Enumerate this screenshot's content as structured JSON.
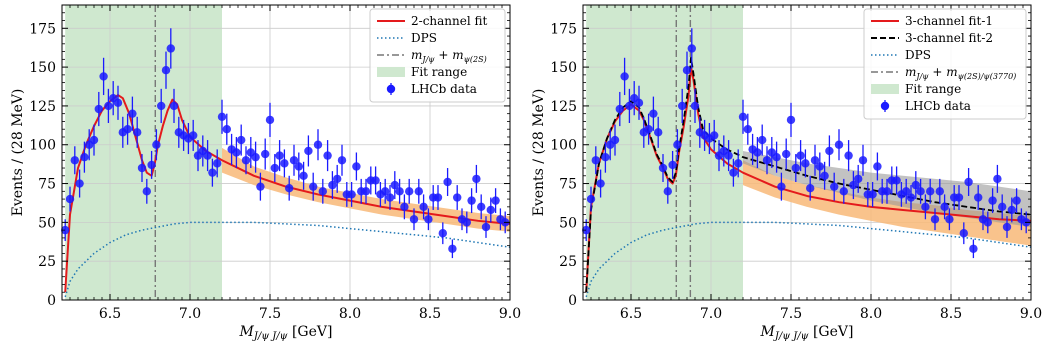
{
  "chart_data": [
    {
      "type": "scatter",
      "title": "",
      "xlabel_main": "M",
      "xlabel_sub": "J/ψ J/ψ",
      "xlabel_unit": " [GeV]",
      "ylabel": "Events / (28 MeV)",
      "xlim": [
        6.2,
        9.0
      ],
      "ylim": [
        0,
        190
      ],
      "xticks": [
        "6.5",
        "7.0",
        "7.5",
        "8.0",
        "8.5",
        "9.0"
      ],
      "xtick_values": [
        6.5,
        7.0,
        7.5,
        8.0,
        8.5,
        9.0
      ],
      "yticks": [
        "0",
        "25",
        "50",
        "75",
        "100",
        "125",
        "150",
        "175"
      ],
      "ytick_values": [
        0,
        25,
        50,
        75,
        100,
        125,
        150,
        175
      ],
      "grid": true,
      "legend_position": "top-right",
      "fit_range": [
        6.22,
        7.2
      ],
      "threshold_lines": [
        6.783
      ],
      "colors": {
        "fit_range": "#cfe8cf",
        "fit": "#e41a1c",
        "band": "#f8b878",
        "dps": "#1f77b4",
        "data": "#1a1aff",
        "threshold": "#777777"
      },
      "legend": [
        {
          "label": "2-channel fit",
          "style": "fit"
        },
        {
          "label": "DPS",
          "style": "dps"
        },
        {
          "label": "m_{J/ψ} + m_{ψ(2S)}",
          "style": "threshold",
          "math_main": "m",
          "math_sub": "J/ψ",
          "math_plus": " + m",
          "math_sub2": "ψ(2S)"
        },
        {
          "label": "Fit range",
          "style": "fit_range"
        },
        {
          "label": "LHCb data",
          "style": "data"
        }
      ],
      "data": {
        "x": [
          6.22,
          6.25,
          6.28,
          6.31,
          6.34,
          6.37,
          6.4,
          6.43,
          6.46,
          6.49,
          6.52,
          6.55,
          6.58,
          6.61,
          6.64,
          6.67,
          6.7,
          6.73,
          6.76,
          6.79,
          6.82,
          6.85,
          6.88,
          6.9,
          6.93,
          6.96,
          6.99,
          7.02,
          7.05,
          7.08,
          7.11,
          7.14,
          7.17,
          7.2,
          7.23,
          7.26,
          7.29,
          7.32,
          7.35,
          7.38,
          7.41,
          7.44,
          7.47,
          7.5,
          7.53,
          7.56,
          7.59,
          7.62,
          7.65,
          7.68,
          7.71,
          7.74,
          7.77,
          7.8,
          7.83,
          7.86,
          7.89,
          7.92,
          7.95,
          7.98,
          8.01,
          8.04,
          8.07,
          8.1,
          8.13,
          8.16,
          8.19,
          8.22,
          8.25,
          8.28,
          8.31,
          8.34,
          8.37,
          8.4,
          8.43,
          8.46,
          8.49,
          8.52,
          8.55,
          8.58,
          8.61,
          8.64,
          8.67,
          8.7,
          8.73,
          8.76,
          8.79,
          8.82,
          8.85,
          8.88,
          8.91,
          8.94,
          8.97
        ],
        "y": [
          45,
          65,
          90,
          75,
          92,
          100,
          103,
          123,
          144,
          125,
          130,
          127,
          108,
          110,
          120,
          108,
          85,
          70,
          87,
          100,
          125,
          148,
          162,
          125,
          108,
          106,
          104,
          106,
          93,
          96,
          93,
          82,
          88,
          118,
          110,
          97,
          95,
          103,
          90,
          95,
          92,
          73,
          94,
          116,
          85,
          93,
          88,
          72,
          90,
          86,
          80,
          96,
          73,
          100,
          70,
          93,
          74,
          78,
          90,
          68,
          68,
          86,
          70,
          70,
          77,
          77,
          68,
          70,
          66,
          74,
          70,
          60,
          70,
          52,
          70,
          60,
          52,
          66,
          66,
          43,
          76,
          33,
          66,
          52,
          50,
          64,
          78,
          60,
          47,
          58,
          64,
          52,
          50
        ],
        "err": [
          7,
          8,
          9,
          9,
          10,
          10,
          10,
          11,
          12,
          11,
          11,
          11,
          10,
          10,
          11,
          10,
          9,
          8,
          9,
          10,
          11,
          12,
          13,
          11,
          10,
          10,
          10,
          10,
          10,
          10,
          10,
          9,
          9,
          11,
          10,
          10,
          10,
          10,
          9,
          10,
          10,
          9,
          10,
          11,
          9,
          10,
          9,
          8,
          10,
          9,
          9,
          10,
          9,
          10,
          8,
          10,
          9,
          9,
          10,
          8,
          8,
          9,
          8,
          8,
          9,
          9,
          8,
          8,
          8,
          9,
          8,
          8,
          8,
          7,
          8,
          8,
          7,
          8,
          8,
          7,
          9,
          6,
          8,
          7,
          7,
          8,
          9,
          8,
          7,
          8,
          8,
          7,
          7
        ]
      },
      "fit": {
        "x": [
          6.22,
          6.25,
          6.3,
          6.35,
          6.4,
          6.45,
          6.5,
          6.55,
          6.58,
          6.62,
          6.66,
          6.7,
          6.73,
          6.76,
          6.78,
          6.8,
          6.83,
          6.86,
          6.89,
          6.92,
          6.95,
          7.0,
          7.1,
          7.2,
          7.4,
          7.6,
          7.8,
          8.0,
          8.2,
          8.4,
          8.6,
          8.8,
          9.0
        ],
        "y": [
          5,
          55,
          85,
          100,
          112,
          122,
          128,
          132,
          130,
          120,
          105,
          90,
          82,
          80,
          88,
          100,
          112,
          122,
          129,
          126,
          116,
          105,
          96,
          90,
          80,
          73,
          68,
          64,
          60,
          57,
          54,
          51,
          49
        ]
      },
      "band": {
        "x": [
          7.2,
          7.4,
          7.6,
          7.8,
          8.0,
          8.2,
          8.4,
          8.6,
          8.8,
          9.0
        ],
        "lo": [
          82,
          74,
          68,
          63,
          59,
          55,
          52,
          49,
          46,
          44
        ],
        "hi": [
          98,
          86,
          79,
          73,
          69,
          65,
          62,
          59,
          56,
          54
        ]
      },
      "dps": {
        "x": [
          6.22,
          6.25,
          6.3,
          6.4,
          6.5,
          6.6,
          6.7,
          6.8,
          6.9,
          7.0,
          7.2,
          7.4,
          7.6,
          7.8,
          8.0,
          8.2,
          8.4,
          8.6,
          8.8,
          9.0
        ],
        "y": [
          2,
          12,
          20,
          30,
          37,
          42,
          45,
          47,
          49,
          50,
          50,
          50,
          49,
          48,
          46,
          44,
          42,
          40,
          37,
          34
        ]
      }
    },
    {
      "type": "scatter",
      "title": "",
      "xlabel_main": "M",
      "xlabel_sub": "J/ψ J/ψ",
      "xlabel_unit": " [GeV]",
      "ylabel": "Events / (28 MeV)",
      "xlim": [
        6.2,
        9.0
      ],
      "ylim": [
        0,
        190
      ],
      "xticks": [
        "6.5",
        "7.0",
        "7.5",
        "8.0",
        "8.5",
        "9.0"
      ],
      "xtick_values": [
        6.5,
        7.0,
        7.5,
        8.0,
        8.5,
        9.0
      ],
      "yticks": [
        "0",
        "25",
        "50",
        "75",
        "100",
        "125",
        "150",
        "175"
      ],
      "ytick_values": [
        0,
        25,
        50,
        75,
        100,
        125,
        150,
        175
      ],
      "grid": true,
      "legend_position": "top-right",
      "fit_range": [
        6.22,
        7.2
      ],
      "threshold_lines": [
        6.783,
        6.871
      ],
      "colors": {
        "fit_range": "#cfe8cf",
        "fit": "#e41a1c",
        "fit2": "#000000",
        "band": "#f8b878",
        "band2": "#9a9a9a",
        "dps": "#1f77b4",
        "data": "#1a1aff",
        "threshold": "#777777"
      },
      "legend": [
        {
          "label": "3-channel fit-1",
          "style": "fit"
        },
        {
          "label": "3-channel fit-2",
          "style": "fit2"
        },
        {
          "label": "DPS",
          "style": "dps"
        },
        {
          "label": "m_{J/ψ} + m_{ψ(2S)/ψ(3770)}",
          "style": "threshold",
          "math_main": "m",
          "math_sub": "J/ψ",
          "math_plus": " + m",
          "math_sub2": "ψ(2S)/ψ(3770)"
        },
        {
          "label": "Fit range",
          "style": "fit_range"
        },
        {
          "label": "LHCb data",
          "style": "data"
        }
      ],
      "data": {
        "x": [
          6.22,
          6.25,
          6.28,
          6.31,
          6.34,
          6.37,
          6.4,
          6.43,
          6.46,
          6.49,
          6.52,
          6.55,
          6.58,
          6.61,
          6.64,
          6.67,
          6.7,
          6.73,
          6.76,
          6.79,
          6.82,
          6.85,
          6.88,
          6.9,
          6.93,
          6.96,
          6.99,
          7.02,
          7.05,
          7.08,
          7.11,
          7.14,
          7.17,
          7.2,
          7.23,
          7.26,
          7.29,
          7.32,
          7.35,
          7.38,
          7.41,
          7.44,
          7.47,
          7.5,
          7.53,
          7.56,
          7.59,
          7.62,
          7.65,
          7.68,
          7.71,
          7.74,
          7.77,
          7.8,
          7.83,
          7.86,
          7.89,
          7.92,
          7.95,
          7.98,
          8.01,
          8.04,
          8.07,
          8.1,
          8.13,
          8.16,
          8.19,
          8.22,
          8.25,
          8.28,
          8.31,
          8.34,
          8.37,
          8.4,
          8.43,
          8.46,
          8.49,
          8.52,
          8.55,
          8.58,
          8.61,
          8.64,
          8.67,
          8.7,
          8.73,
          8.76,
          8.79,
          8.82,
          8.85,
          8.88,
          8.91,
          8.94,
          8.97
        ],
        "y": [
          45,
          65,
          90,
          75,
          92,
          100,
          103,
          123,
          144,
          125,
          130,
          127,
          108,
          110,
          120,
          108,
          85,
          70,
          87,
          100,
          125,
          148,
          162,
          125,
          108,
          106,
          104,
          106,
          93,
          96,
          93,
          82,
          88,
          118,
          110,
          97,
          95,
          103,
          90,
          95,
          92,
          73,
          94,
          116,
          85,
          93,
          88,
          72,
          90,
          86,
          80,
          96,
          73,
          100,
          70,
          93,
          74,
          78,
          90,
          68,
          68,
          86,
          70,
          70,
          77,
          77,
          68,
          70,
          66,
          74,
          70,
          60,
          70,
          52,
          70,
          60,
          52,
          66,
          66,
          43,
          76,
          33,
          66,
          52,
          50,
          64,
          78,
          60,
          47,
          58,
          64,
          52,
          50
        ],
        "err": [
          7,
          8,
          9,
          9,
          10,
          10,
          10,
          11,
          12,
          11,
          11,
          11,
          10,
          10,
          11,
          10,
          9,
          8,
          9,
          10,
          11,
          12,
          13,
          11,
          10,
          10,
          10,
          10,
          10,
          10,
          10,
          9,
          9,
          11,
          10,
          10,
          10,
          10,
          9,
          10,
          10,
          9,
          10,
          11,
          9,
          10,
          9,
          8,
          10,
          9,
          9,
          10,
          9,
          10,
          8,
          10,
          9,
          9,
          10,
          8,
          8,
          9,
          8,
          8,
          9,
          9,
          8,
          8,
          8,
          9,
          8,
          8,
          8,
          7,
          8,
          8,
          7,
          8,
          8,
          7,
          9,
          6,
          8,
          7,
          7,
          8,
          9,
          8,
          7,
          8,
          8,
          7,
          7
        ]
      },
      "fit": {
        "x": [
          6.22,
          6.25,
          6.3,
          6.35,
          6.4,
          6.45,
          6.5,
          6.55,
          6.58,
          6.62,
          6.66,
          6.7,
          6.73,
          6.76,
          6.78,
          6.8,
          6.83,
          6.86,
          6.875,
          6.89,
          6.92,
          6.95,
          7.0,
          7.1,
          7.2,
          7.4,
          7.6,
          7.8,
          8.0,
          8.2,
          8.4,
          8.6,
          8.8,
          9.0
        ],
        "y": [
          5,
          60,
          88,
          104,
          115,
          122,
          126,
          122,
          116,
          105,
          93,
          85,
          78,
          75,
          80,
          95,
          112,
          132,
          150,
          142,
          120,
          105,
          97,
          88,
          82,
          73,
          67,
          63,
          60,
          58,
          56,
          54,
          52,
          51
        ]
      },
      "fit2": {
        "x": [
          6.22,
          6.25,
          6.3,
          6.35,
          6.4,
          6.45,
          6.5,
          6.55,
          6.58,
          6.62,
          6.66,
          6.7,
          6.73,
          6.76,
          6.78,
          6.8,
          6.83,
          6.86,
          6.875,
          6.89,
          6.92,
          6.95,
          7.0,
          7.1,
          7.2,
          7.4,
          7.6,
          7.8,
          8.0,
          8.2,
          8.4,
          8.6,
          8.8,
          9.0
        ],
        "y": [
          5,
          58,
          88,
          104,
          116,
          124,
          128,
          124,
          117,
          106,
          94,
          86,
          79,
          76,
          82,
          97,
          116,
          138,
          156,
          146,
          124,
          110,
          104,
          97,
          92,
          86,
          80,
          75,
          71,
          67,
          63,
          60,
          57,
          55
        ]
      },
      "band": {
        "x": [
          7.2,
          7.4,
          7.6,
          7.8,
          8.0,
          8.2,
          8.4,
          8.6,
          8.8,
          9.0
        ],
        "lo": [
          74,
          66,
          60,
          55,
          51,
          47,
          44,
          41,
          38,
          35
        ],
        "hi": [
          90,
          80,
          74,
          70,
          66,
          63,
          61,
          58,
          56,
          54
        ]
      },
      "band2": {
        "x": [
          7.2,
          7.4,
          7.6,
          7.8,
          8.0,
          8.2,
          8.4,
          8.6,
          8.8,
          9.0
        ],
        "lo": [
          88,
          80,
          74,
          69,
          64,
          60,
          56,
          53,
          50,
          47
        ],
        "hi": [
          96,
          92,
          88,
          85,
          82,
          80,
          78,
          76,
          73,
          70
        ]
      },
      "dps": {
        "x": [
          6.22,
          6.25,
          6.3,
          6.4,
          6.5,
          6.6,
          6.7,
          6.8,
          6.9,
          7.0,
          7.2,
          7.4,
          7.6,
          7.8,
          8.0,
          8.2,
          8.4,
          8.6,
          8.8,
          9.0
        ],
        "y": [
          2,
          12,
          20,
          30,
          37,
          42,
          45,
          47,
          49,
          50,
          50,
          50,
          49,
          48,
          46,
          44,
          42,
          40,
          37,
          34
        ]
      }
    }
  ]
}
